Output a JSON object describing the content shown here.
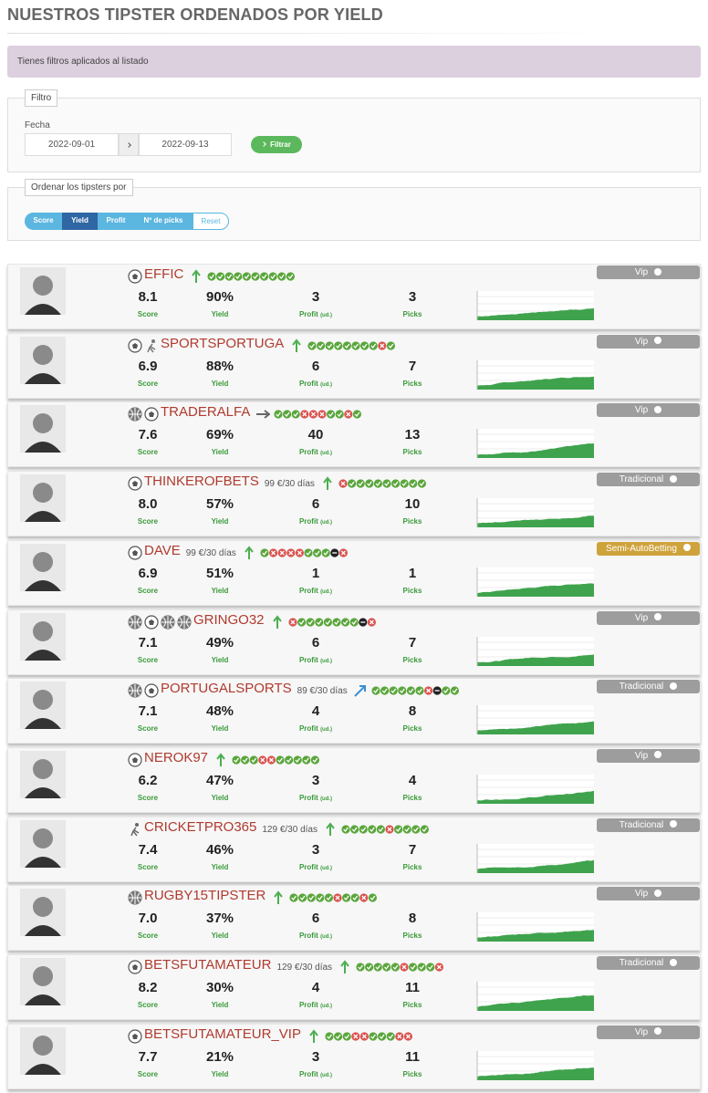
{
  "header": {
    "title": "NUESTROS TIPSTER ORDENADOS POR YIELD"
  },
  "alert": "Tienes filtros aplicados al listado",
  "filter": {
    "legend": "Filtro",
    "label": "Fecha",
    "from": "2022-09-01",
    "to": "2022-09-13",
    "button": "Filtrar"
  },
  "sort": {
    "legend": "Ordenar los tipsters por",
    "buttons": [
      "Score",
      "Yield",
      "Profit",
      "Nº de picks",
      "Reset"
    ],
    "active": 1
  },
  "labels": {
    "score": "Score",
    "yield": "Yield",
    "profit": "Profit",
    "unit": "(ud.)",
    "picks": "Picks"
  },
  "tipsters": [
    {
      "name": "EFFIC",
      "sports": [
        "soccer"
      ],
      "price": null,
      "trend": "up",
      "results": [
        "w",
        "w",
        "w",
        "w",
        "w",
        "w",
        "w",
        "w",
        "w",
        "w"
      ],
      "score": "8.1",
      "yield": "90%",
      "profit": "3",
      "picks": "3",
      "badge": "Vip"
    },
    {
      "name": "SPORTSPORTUGA",
      "sports": [
        "soccer",
        "handball"
      ],
      "price": null,
      "trend": "up",
      "results": [
        "w",
        "w",
        "w",
        "w",
        "w",
        "w",
        "w",
        "w",
        "l",
        "w"
      ],
      "score": "6.9",
      "yield": "88%",
      "profit": "6",
      "picks": "7",
      "badge": "Vip"
    },
    {
      "name": "TRADERALFA",
      "sports": [
        "basketball",
        "soccer"
      ],
      "price": null,
      "trend": "flat",
      "results": [
        "w",
        "w",
        "w",
        "l",
        "l",
        "l",
        "w",
        "w",
        "l",
        "w"
      ],
      "score": "7.6",
      "yield": "69%",
      "profit": "40",
      "picks": "13",
      "badge": "Vip"
    },
    {
      "name": "THINKEROFBETS",
      "sports": [
        "soccer"
      ],
      "price": "99 €/30 días",
      "trend": "up",
      "results": [
        "l",
        "w",
        "w",
        "w",
        "w",
        "w",
        "w",
        "w",
        "w",
        "w"
      ],
      "score": "8.0",
      "yield": "57%",
      "profit": "6",
      "picks": "10",
      "badge": "Tradicional"
    },
    {
      "name": "DAVE",
      "sports": [
        "soccer"
      ],
      "price": "99 €/30 días",
      "trend": "up",
      "results": [
        "w",
        "l",
        "l",
        "l",
        "l",
        "w",
        "w",
        "w",
        "v",
        "l"
      ],
      "score": "6.9",
      "yield": "51%",
      "profit": "1",
      "picks": "1",
      "badge": "Semi-AutoBetting"
    },
    {
      "name": "GRINGO32",
      "sports": [
        "basketball",
        "soccer",
        "tennis",
        "volleyball"
      ],
      "price": null,
      "trend": "up",
      "results": [
        "l",
        "w",
        "w",
        "w",
        "w",
        "w",
        "w",
        "w",
        "v",
        "l"
      ],
      "score": "7.1",
      "yield": "49%",
      "profit": "6",
      "picks": "7",
      "badge": "Vip"
    },
    {
      "name": "PORTUGALSPORTS",
      "sports": [
        "basketball",
        "soccer"
      ],
      "price": "89 €/30 días",
      "trend": "rising",
      "results": [
        "w",
        "w",
        "w",
        "w",
        "w",
        "w",
        "l",
        "v",
        "w",
        "w"
      ],
      "score": "7.1",
      "yield": "48%",
      "profit": "4",
      "picks": "8",
      "badge": "Tradicional"
    },
    {
      "name": "NEROK97",
      "sports": [
        "soccer"
      ],
      "price": null,
      "trend": "up",
      "results": [
        "w",
        "w",
        "w",
        "l",
        "l",
        "w",
        "w",
        "w",
        "w",
        "w"
      ],
      "score": "6.2",
      "yield": "47%",
      "profit": "3",
      "picks": "4",
      "badge": "Vip"
    },
    {
      "name": "CRICKETPRO365",
      "sports": [
        "cricket"
      ],
      "price": "129 €/30 días",
      "trend": "up",
      "results": [
        "w",
        "w",
        "w",
        "w",
        "w",
        "l",
        "w",
        "w",
        "w",
        "w"
      ],
      "score": "7.4",
      "yield": "46%",
      "profit": "3",
      "picks": "7",
      "badge": "Tradicional"
    },
    {
      "name": "RUGBY15TIPSTER",
      "sports": [
        "rugby"
      ],
      "price": null,
      "trend": "up",
      "results": [
        "w",
        "w",
        "w",
        "w",
        "w",
        "l",
        "w",
        "w",
        "l",
        "w"
      ],
      "score": "7.0",
      "yield": "37%",
      "profit": "6",
      "picks": "8",
      "badge": "Vip"
    },
    {
      "name": "BETSFUTAMATEUR",
      "sports": [
        "soccer"
      ],
      "price": "129 €/30 días",
      "trend": "up",
      "results": [
        "w",
        "w",
        "w",
        "w",
        "w",
        "l",
        "w",
        "w",
        "w",
        "l"
      ],
      "score": "8.2",
      "yield": "30%",
      "profit": "4",
      "picks": "11",
      "badge": "Tradicional"
    },
    {
      "name": "BETSFUTAMATEUR_VIP",
      "sports": [
        "soccer"
      ],
      "price": null,
      "trend": "up",
      "results": [
        "w",
        "w",
        "w",
        "l",
        "l",
        "w",
        "w",
        "w",
        "l",
        "l"
      ],
      "score": "7.7",
      "yield": "21%",
      "profit": "3",
      "picks": "11",
      "badge": "Vip"
    }
  ]
}
